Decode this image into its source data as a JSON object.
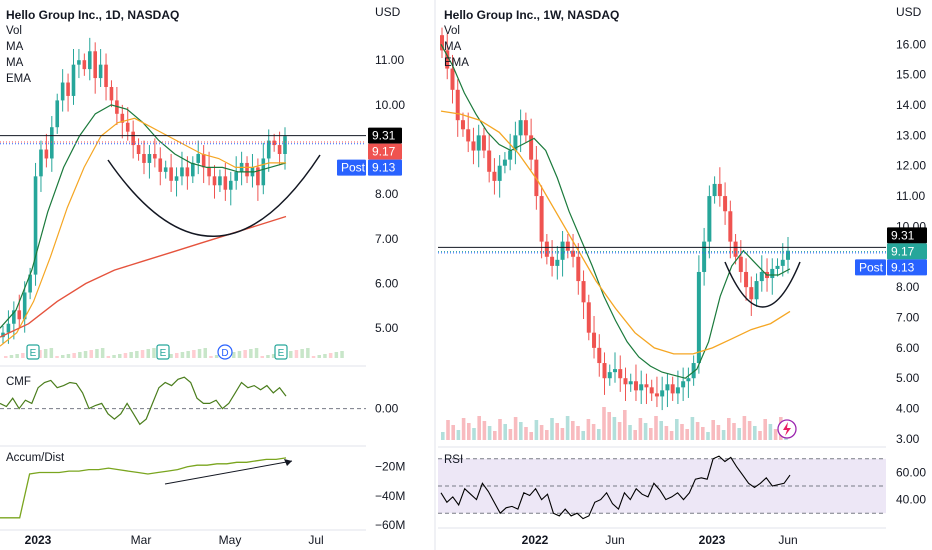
{
  "left": {
    "title": "Hello Group Inc., 1D, NASDAQ",
    "indicators": [
      "Vol",
      "MA",
      "MA",
      "EMA"
    ],
    "currency": "USD",
    "price_ticks": [
      "11.00",
      "10.00",
      "8.00",
      "7.00",
      "6.00",
      "5.00"
    ],
    "price_labels": {
      "last": "9.31",
      "close": "9.17",
      "post_label": "Post",
      "post": "9.13"
    },
    "events": [
      "E",
      "E",
      "D",
      "E"
    ],
    "cmf": {
      "label": "CMF",
      "tick": "0.00"
    },
    "ad": {
      "label": "Accum/Dist",
      "ticks": [
        "−20M",
        "−40M",
        "−60M"
      ]
    },
    "x_ticks": [
      "2023",
      "Mar",
      "May",
      "Jul"
    ]
  },
  "right": {
    "title": "Hello Group Inc., 1W, NASDAQ",
    "indicators": [
      "Vol",
      "MA",
      "EMA"
    ],
    "currency": "USD",
    "price_ticks": [
      "16.00",
      "15.00",
      "14.00",
      "13.00",
      "12.00",
      "11.00",
      "10.00",
      "8.00",
      "7.00",
      "6.00",
      "5.00",
      "4.00",
      "3.00"
    ],
    "price_labels": {
      "last": "9.31",
      "close": "9.17",
      "post_label": "Post",
      "post": "9.13"
    },
    "rsi": {
      "label": "RSI",
      "ticks": [
        "60.00",
        "40.00"
      ]
    },
    "x_ticks": [
      "2022",
      "Jun",
      "2023",
      "Jun"
    ]
  },
  "colors": {
    "up": "#26a69a",
    "down": "#ef5350",
    "ma_green": "#1b7a3c",
    "ma_orange": "#f5a623",
    "ema_red": "#e5533d",
    "cmf": "#4a7d1c",
    "ad": "#7aa51f",
    "rsi_line": "#000000",
    "rsi_bg": "#ede7f6",
    "post": "#2962ff",
    "last_bg": "#000000",
    "close_bg_left": "#ef5350",
    "close_bg_right": "#26a69a"
  },
  "chart_data": [
    {
      "type": "candlestick",
      "title": "Hello Group Inc., 1D, NASDAQ",
      "ylabel": "USD",
      "ylim": [
        4.4,
        11.9
      ],
      "x_ticks": [
        "2023",
        "Mar",
        "May",
        "Jul"
      ],
      "series": [
        {
          "name": "price",
          "values": [
            4.9,
            5.1,
            5.4,
            5.2,
            5.8,
            6.2,
            8.4,
            9.0,
            8.8,
            9.5,
            10.1,
            10.5,
            10.2,
            10.9,
            11.0,
            10.8,
            11.2,
            10.6,
            10.9,
            10.4,
            10.1,
            9.8,
            9.6,
            9.4,
            9.1,
            8.9,
            8.7,
            8.9,
            8.8,
            8.5,
            8.6,
            8.3,
            8.4,
            8.6,
            8.4,
            8.7,
            8.9,
            8.6,
            8.4,
            8.2,
            8.4,
            8.1,
            8.3,
            8.5,
            8.7,
            8.4,
            8.6,
            8.2,
            8.8,
            9.2,
            9.1,
            8.9,
            9.3
          ]
        },
        {
          "name": "MA",
          "values": [
            5.0,
            5.4,
            6.3,
            7.6,
            8.6,
            9.3,
            9.8,
            10.0,
            9.9,
            9.6,
            9.2,
            8.9,
            8.7,
            8.6,
            8.6,
            8.5,
            8.5,
            8.6,
            8.7
          ]
        },
        {
          "name": "MA",
          "values": [
            4.6,
            4.9,
            5.6,
            6.6,
            7.7,
            8.6,
            9.3,
            9.6,
            9.7,
            9.5,
            9.3,
            9.1,
            8.9,
            8.8,
            8.6,
            8.6,
            8.7,
            8.7
          ]
        },
        {
          "name": "EMA",
          "values": [
            4.8,
            5.1,
            5.6,
            6.0,
            6.3,
            6.5,
            6.7,
            6.9,
            7.1,
            7.3,
            7.5
          ]
        }
      ],
      "annotations": [
        "cup arc drawn under price",
        "horizontal line at 9.31"
      ]
    },
    {
      "type": "line",
      "title": "CMF",
      "ylim": [
        -0.3,
        0.35
      ],
      "series": [
        {
          "name": "CMF",
          "values": [
            0.05,
            0.02,
            0.1,
            0.0,
            0.08,
            0.05,
            0.2,
            0.25,
            0.27,
            0.2,
            0.22,
            0.25,
            0.24,
            0.15,
            0.0,
            0.03,
            0.05,
            -0.05,
            -0.1,
            -0.05,
            0.05,
            -0.05,
            -0.15,
            -0.1,
            0.05,
            0.2,
            0.25,
            0.22,
            0.28,
            0.3,
            0.25,
            0.1,
            0.05,
            0.05,
            0.08,
            0.0,
            0.05,
            0.15,
            0.25,
            0.2,
            0.22,
            0.18,
            0.22,
            0.15,
            0.2,
            0.12
          ]
        }
      ]
    },
    {
      "type": "line",
      "title": "Accum/Dist",
      "ylabel": "M",
      "ylim": [
        -62,
        -12
      ],
      "series": [
        {
          "name": "Accum/Dist",
          "values": [
            -55,
            -55,
            -55,
            -25,
            -24,
            -24,
            -24,
            -23,
            -23,
            -22,
            -22,
            -21,
            -22,
            -23,
            -24,
            -25,
            -24,
            -23,
            -22,
            -20,
            -19,
            -19,
            -18,
            -18,
            -17,
            -17,
            -16,
            -15,
            -15,
            -14
          ]
        }
      ]
    },
    {
      "type": "candlestick",
      "title": "Hello Group Inc., 1W, NASDAQ",
      "ylabel": "USD",
      "ylim": [
        2.8,
        16.8
      ],
      "x_ticks": [
        "2022",
        "Jun",
        "2023",
        "Jun"
      ],
      "series": [
        {
          "name": "price",
          "values": [
            15.8,
            15.2,
            14.5,
            13.5,
            13.2,
            12.8,
            12.5,
            13.0,
            12.5,
            11.8,
            11.5,
            12.0,
            12.2,
            12.5,
            13.0,
            13.5,
            13.0,
            12.2,
            11.0,
            9.5,
            9.0,
            8.7,
            8.9,
            9.5,
            9.2,
            9.0,
            8.2,
            7.5,
            6.5,
            6.0,
            5.5,
            5.0,
            5.2,
            5.3,
            5.0,
            4.8,
            4.9,
            4.6,
            4.8,
            4.7,
            4.5,
            4.4,
            4.6,
            4.8,
            4.5,
            4.7,
            4.9,
            5.0,
            5.5,
            8.5,
            9.5,
            11.0,
            11.4,
            11.0,
            10.5,
            9.5,
            9.0,
            8.5,
            8.0,
            7.6,
            8.2,
            8.5,
            8.3,
            8.6,
            8.7,
            8.9,
            9.2
          ]
        },
        {
          "name": "MA",
          "values": [
            16.0,
            15.3,
            14.4,
            13.7,
            13.1,
            12.7,
            12.5,
            12.7,
            12.9,
            12.5,
            11.6,
            10.5,
            9.6,
            8.7,
            7.7,
            6.9,
            6.2,
            5.7,
            5.4,
            5.2,
            5.1,
            5.0,
            5.3,
            6.2,
            7.7,
            8.7,
            9.2,
            8.8,
            8.4,
            8.4,
            8.6
          ]
        },
        {
          "name": "EMA",
          "values": [
            13.8,
            13.7,
            13.5,
            13.1,
            12.4,
            11.5,
            10.4,
            9.3,
            8.2,
            7.3,
            6.5,
            6.0,
            5.8,
            5.8,
            6.0,
            6.3,
            6.6,
            6.8,
            7.2
          ]
        }
      ],
      "annotations": [
        "cup arc drawn under price",
        "horizontal line at 9.31"
      ]
    },
    {
      "type": "line",
      "title": "RSI",
      "ylim": [
        25,
        75
      ],
      "series": [
        {
          "name": "RSI",
          "values": [
            45,
            38,
            42,
            36,
            48,
            44,
            40,
            52,
            46,
            38,
            30,
            34,
            35,
            33,
            45,
            43,
            48,
            40,
            44,
            30,
            28,
            33,
            28,
            30,
            26,
            28,
            38,
            40,
            45,
            37,
            33,
            45,
            40,
            48,
            44,
            42,
            52,
            47,
            40,
            42,
            45,
            40,
            45,
            55,
            56,
            55,
            70,
            72,
            68,
            71,
            64,
            58,
            52,
            49,
            52,
            56,
            50,
            51,
            52,
            58
          ]
        }
      ]
    }
  ]
}
